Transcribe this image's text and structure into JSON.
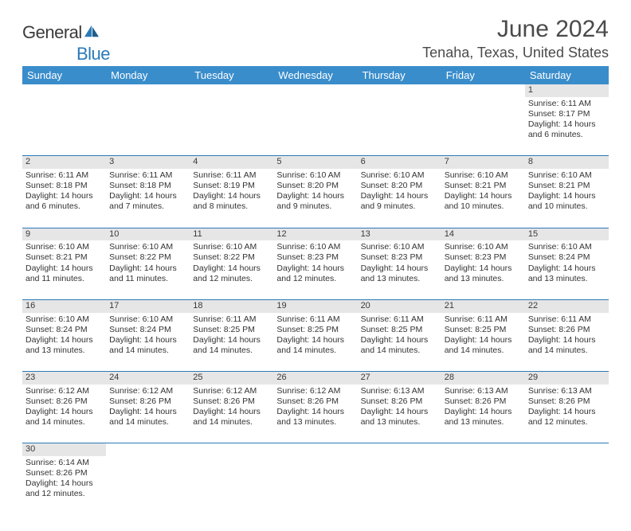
{
  "brand": {
    "part1": "General",
    "part2": "Blue"
  },
  "title": {
    "monthYear": "June 2024",
    "location": "Tenaha, Texas, United States"
  },
  "colors": {
    "headerBar": "#3a8dcb",
    "dayNumBg": "#e6e6e6",
    "rule": "#2a7ab8",
    "text": "#333333",
    "brandBlue": "#2a7ab8"
  },
  "weekdays": [
    "Sunday",
    "Monday",
    "Tuesday",
    "Wednesday",
    "Thursday",
    "Friday",
    "Saturday"
  ],
  "days": {
    "1": {
      "sr": "6:11 AM",
      "ss": "8:17 PM",
      "dl": "14 hours and 6 minutes."
    },
    "2": {
      "sr": "6:11 AM",
      "ss": "8:18 PM",
      "dl": "14 hours and 6 minutes."
    },
    "3": {
      "sr": "6:11 AM",
      "ss": "8:18 PM",
      "dl": "14 hours and 7 minutes."
    },
    "4": {
      "sr": "6:11 AM",
      "ss": "8:19 PM",
      "dl": "14 hours and 8 minutes."
    },
    "5": {
      "sr": "6:10 AM",
      "ss": "8:20 PM",
      "dl": "14 hours and 9 minutes."
    },
    "6": {
      "sr": "6:10 AM",
      "ss": "8:20 PM",
      "dl": "14 hours and 9 minutes."
    },
    "7": {
      "sr": "6:10 AM",
      "ss": "8:21 PM",
      "dl": "14 hours and 10 minutes."
    },
    "8": {
      "sr": "6:10 AM",
      "ss": "8:21 PM",
      "dl": "14 hours and 10 minutes."
    },
    "9": {
      "sr": "6:10 AM",
      "ss": "8:21 PM",
      "dl": "14 hours and 11 minutes."
    },
    "10": {
      "sr": "6:10 AM",
      "ss": "8:22 PM",
      "dl": "14 hours and 11 minutes."
    },
    "11": {
      "sr": "6:10 AM",
      "ss": "8:22 PM",
      "dl": "14 hours and 12 minutes."
    },
    "12": {
      "sr": "6:10 AM",
      "ss": "8:23 PM",
      "dl": "14 hours and 12 minutes."
    },
    "13": {
      "sr": "6:10 AM",
      "ss": "8:23 PM",
      "dl": "14 hours and 13 minutes."
    },
    "14": {
      "sr": "6:10 AM",
      "ss": "8:23 PM",
      "dl": "14 hours and 13 minutes."
    },
    "15": {
      "sr": "6:10 AM",
      "ss": "8:24 PM",
      "dl": "14 hours and 13 minutes."
    },
    "16": {
      "sr": "6:10 AM",
      "ss": "8:24 PM",
      "dl": "14 hours and 13 minutes."
    },
    "17": {
      "sr": "6:10 AM",
      "ss": "8:24 PM",
      "dl": "14 hours and 14 minutes."
    },
    "18": {
      "sr": "6:11 AM",
      "ss": "8:25 PM",
      "dl": "14 hours and 14 minutes."
    },
    "19": {
      "sr": "6:11 AM",
      "ss": "8:25 PM",
      "dl": "14 hours and 14 minutes."
    },
    "20": {
      "sr": "6:11 AM",
      "ss": "8:25 PM",
      "dl": "14 hours and 14 minutes."
    },
    "21": {
      "sr": "6:11 AM",
      "ss": "8:25 PM",
      "dl": "14 hours and 14 minutes."
    },
    "22": {
      "sr": "6:11 AM",
      "ss": "8:26 PM",
      "dl": "14 hours and 14 minutes."
    },
    "23": {
      "sr": "6:12 AM",
      "ss": "8:26 PM",
      "dl": "14 hours and 14 minutes."
    },
    "24": {
      "sr": "6:12 AM",
      "ss": "8:26 PM",
      "dl": "14 hours and 14 minutes."
    },
    "25": {
      "sr": "6:12 AM",
      "ss": "8:26 PM",
      "dl": "14 hours and 14 minutes."
    },
    "26": {
      "sr": "6:12 AM",
      "ss": "8:26 PM",
      "dl": "14 hours and 13 minutes."
    },
    "27": {
      "sr": "6:13 AM",
      "ss": "8:26 PM",
      "dl": "14 hours and 13 minutes."
    },
    "28": {
      "sr": "6:13 AM",
      "ss": "8:26 PM",
      "dl": "14 hours and 13 minutes."
    },
    "29": {
      "sr": "6:13 AM",
      "ss": "8:26 PM",
      "dl": "14 hours and 12 minutes."
    },
    "30": {
      "sr": "6:14 AM",
      "ss": "8:26 PM",
      "dl": "14 hours and 12 minutes."
    }
  },
  "labels": {
    "sunrise": "Sunrise:",
    "sunset": "Sunset:",
    "daylight": "Daylight:"
  },
  "grid": {
    "startWeekday": 6,
    "daysInMonth": 30
  }
}
